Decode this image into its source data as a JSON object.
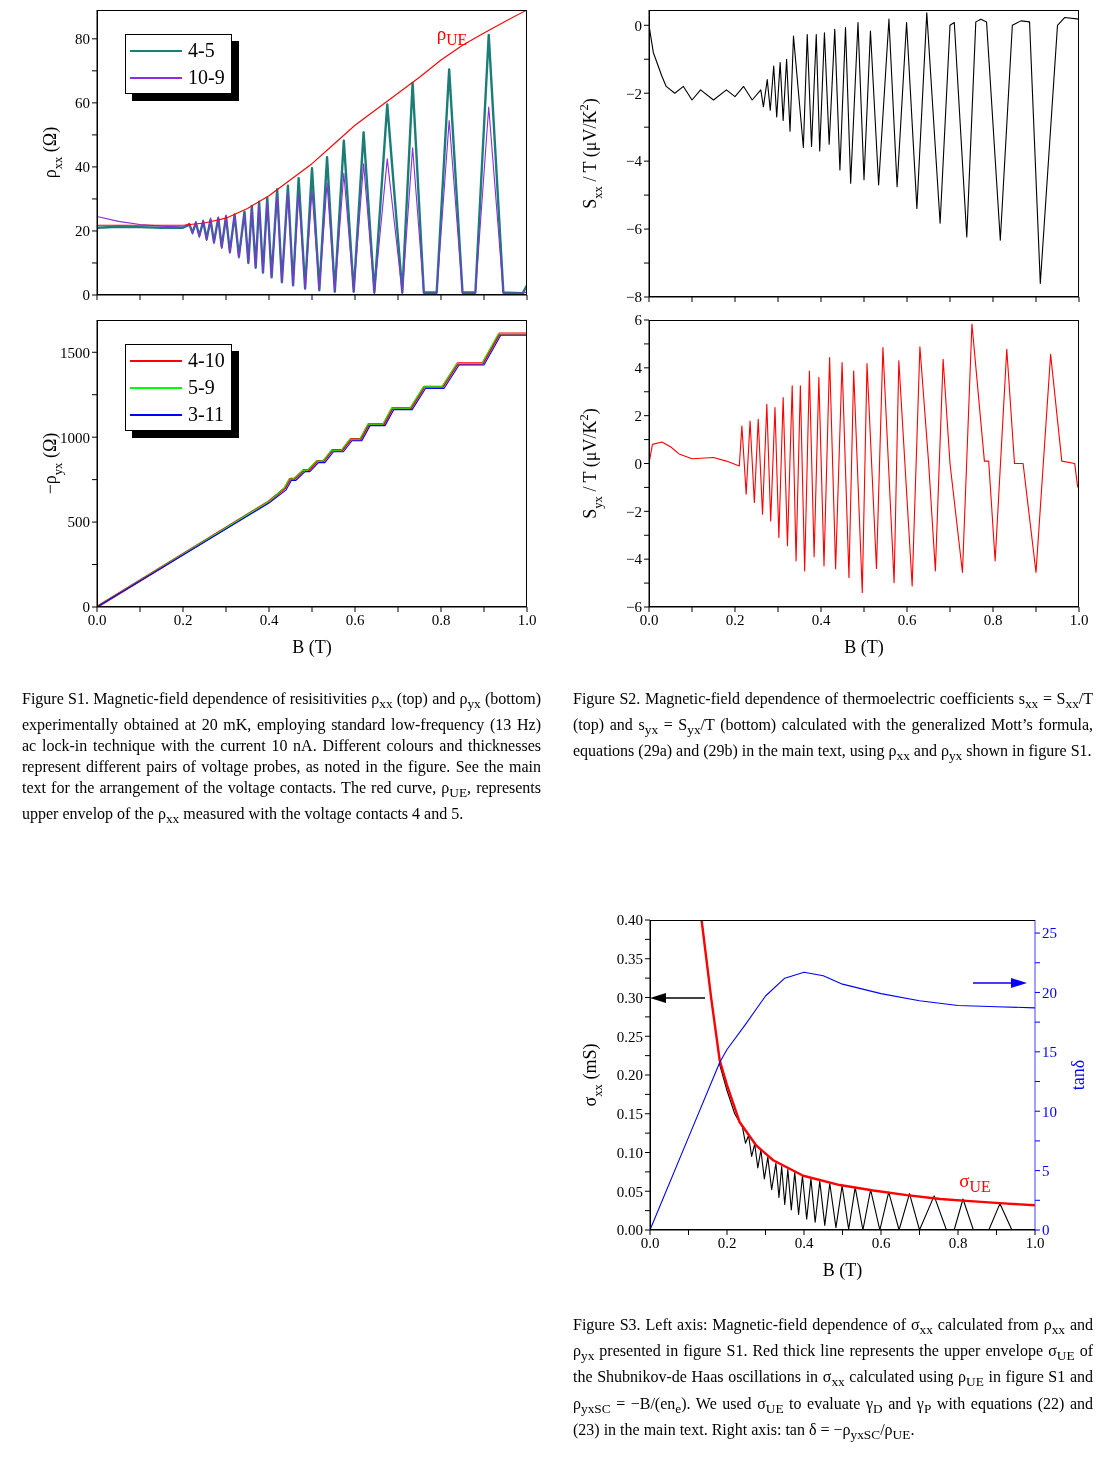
{
  "chart_data": [
    {
      "type": "line",
      "ylabel": "ρ$_{xx}$ (Ω)",
      "xlim": [
        0,
        1
      ],
      "xticks": [
        0,
        0.1,
        0.2,
        0.3,
        0.4,
        0.5,
        0.6,
        0.7,
        0.8,
        0.9,
        1
      ],
      "ylim": [
        0,
        89
      ],
      "yticks": [
        0,
        {
          "value": 10,
          "label": null
        },
        20,
        {
          "value": 30,
          "label": null
        },
        40,
        {
          "value": 50,
          "label": null
        },
        60,
        {
          "value": 70,
          "label": null
        },
        80
      ],
      "tick_labels": "y",
      "legend": "top left",
      "annotations": [
        "ρ$_{UE}$"
      ],
      "series": [
        {
          "name": "4-5",
          "color": "#1a7d78",
          "x": [
            0,
            0.05,
            0.1,
            0.15,
            0.2,
            0.215,
            0.222,
            0.23,
            0.238,
            0.247,
            0.255,
            0.264,
            0.272,
            0.282,
            0.29,
            0.3,
            0.309,
            0.32,
            0.33,
            0.343,
            0.352,
            0.36,
            0.369,
            0.377,
            0.386,
            0.396,
            0.406,
            0.419,
            0.43,
            0.444,
            0.456,
            0.469,
            0.484,
            0.5,
            0.517,
            0.535,
            0.553,
            0.574,
            0.597,
            0.62,
            0.645,
            0.675,
            0.71,
            0.734,
            0.76,
            0.79,
            0.819,
            0.85,
            0.88,
            0.911,
            0.945,
            0.99,
            1.0
          ],
          "values": [
            21,
            21.3,
            21.2,
            21,
            21,
            22,
            19.5,
            22.5,
            18.5,
            23,
            17.5,
            23.5,
            16.5,
            24,
            15,
            24.5,
            13.5,
            25,
            12,
            26,
            10,
            27.8,
            8.5,
            29.1,
            7,
            30.4,
            5.5,
            33,
            4,
            34.1,
            3,
            36.5,
            2,
            39.6,
            1.5,
            43,
            1,
            48.2,
            1,
            50.8,
            0.8,
            59.5,
            0.8,
            66.2,
            0.8,
            0.8,
            70.4,
            0.8,
            0.8,
            81.2,
            0.8,
            0.6,
            3
          ]
        },
        {
          "name": "10-9",
          "color": "#8b2be2",
          "x": [
            0,
            0.05,
            0.1,
            0.15,
            0.2,
            0.215,
            0.222,
            0.23,
            0.238,
            0.247,
            0.255,
            0.264,
            0.272,
            0.282,
            0.29,
            0.3,
            0.309,
            0.32,
            0.33,
            0.343,
            0.352,
            0.36,
            0.369,
            0.377,
            0.386,
            0.396,
            0.406,
            0.419,
            0.43,
            0.444,
            0.456,
            0.469,
            0.484,
            0.5,
            0.517,
            0.535,
            0.553,
            0.574,
            0.597,
            0.62,
            0.645,
            0.675,
            0.71,
            0.734,
            0.76,
            0.79,
            0.819,
            0.85,
            0.88,
            0.911,
            0.945,
            0.99,
            1.0
          ],
          "values": [
            24.5,
            23,
            22,
            21.5,
            21.2,
            22.4,
            19,
            23,
            18,
            23.4,
            17,
            24,
            16,
            24.4,
            14.5,
            25,
            13,
            25.4,
            11.5,
            25.5,
            10,
            27,
            8.5,
            28,
            7,
            29,
            5.5,
            31,
            4,
            32,
            3,
            31.4,
            2,
            32.5,
            1.5,
            35,
            1,
            38,
            1,
            41,
            0.5,
            42.5,
            0.5,
            46,
            0.5,
            0.5,
            54.5,
            0.5,
            0.5,
            58.7,
            0.5,
            0.5,
            1
          ]
        },
        {
          "color": "#ff0000",
          "x": [
            0,
            0.1,
            0.2,
            0.25,
            0.3,
            0.35,
            0.4,
            0.45,
            0.5,
            0.55,
            0.6,
            0.65,
            0.7,
            0.75,
            0.8,
            0.85,
            0.9,
            0.95,
            1.0
          ],
          "values": [
            21.8,
            21.8,
            21.8,
            22.5,
            24,
            27,
            31,
            36,
            41,
            47,
            53,
            58,
            63,
            68,
            73.4,
            78,
            81.8,
            85.5,
            89
          ]
        }
      ]
    },
    {
      "type": "line",
      "xlabel": "B (T)",
      "ylabel": "−ρ$_{yx}$ (Ω)",
      "xlim": [
        0,
        1
      ],
      "xticks": [
        {
          "value": 0,
          "label": "0.0"
        },
        {
          "value": 0.1,
          "label": null
        },
        0.2,
        {
          "value": 0.3,
          "label": null
        },
        0.4,
        {
          "value": 0.5,
          "label": null
        },
        0.6,
        {
          "value": 0.7,
          "label": null
        },
        0.8,
        {
          "value": 0.9,
          "label": null
        },
        {
          "value": 1,
          "label": "1.0"
        }
      ],
      "ylim": [
        0,
        1690
      ],
      "yticks": [
        0,
        {
          "value": 250,
          "label": null
        },
        500,
        {
          "value": 750,
          "label": null
        },
        1000,
        {
          "value": 1250,
          "label": null
        },
        1500
      ],
      "legend": "top left",
      "annotations": [
        "Figure S1. Magnetic-field dependence of resisitivities ρ$_{xx}$ (top) and ρ$_{yx}$ (bottom) experimentally obtained at 20 mK, employing standard low-frequency (13 Hz) ac lock-in technique with the current 10 nA. Different colours and thicknesses represent different pairs of voltage probes, as noted in the figure. See the main text for the arrangement of the voltage contacts. The red curve, ρ$_{UE}$, represents upper envelop of the ρ$_{xx}$ measured with the voltage contacts 4 and 5."
      ],
      "series": [
        {
          "name": "4-10",
          "color": "#ff0000",
          "x": [
            0,
            0.4,
            0.437,
            0.449,
            0.459,
            0.481,
            0.492,
            0.512,
            0.527,
            0.547,
            0.57,
            0.59,
            0.613,
            0.632,
            0.667,
            0.687,
            0.73,
            0.761,
            0.804,
            0.839,
            0.897,
            0.936,
            1.0
          ],
          "values": [
            0,
            621,
            700,
            754,
            754,
            806,
            806,
            859,
            859,
            923,
            923,
            988,
            988,
            1077,
            1077,
            1171,
            1171,
            1296,
            1296,
            1434,
            1434,
            1610,
            1610
          ]
        },
        {
          "name": "5-9",
          "color": "#00ff00",
          "x": [
            0,
            0.4,
            0.435,
            0.447,
            0.457,
            0.479,
            0.49,
            0.51,
            0.525,
            0.545,
            0.568,
            0.588,
            0.611,
            0.63,
            0.665,
            0.685,
            0.728,
            0.759,
            0.802,
            0.837,
            0.895,
            0.934,
            1.0
          ],
          "values": [
            0,
            621,
            700,
            754,
            754,
            806,
            806,
            859,
            859,
            923,
            923,
            988,
            988,
            1077,
            1077,
            1171,
            1171,
            1296,
            1296,
            1434,
            1434,
            1610,
            1610
          ]
        },
        {
          "name": "3-11",
          "color": "#0000ff",
          "x": [
            0,
            0.4,
            0.44,
            0.452,
            0.462,
            0.484,
            0.495,
            0.515,
            0.53,
            0.55,
            0.573,
            0.593,
            0.616,
            0.635,
            0.67,
            0.69,
            0.733,
            0.764,
            0.807,
            0.842,
            0.9,
            0.939,
            1.0
          ],
          "values": [
            0,
            612,
            690,
            745,
            745,
            797,
            797,
            850,
            850,
            914,
            914,
            979,
            979,
            1068,
            1068,
            1162,
            1162,
            1287,
            1287,
            1425,
            1425,
            1600,
            1600
          ]
        }
      ]
    },
    {
      "type": "line",
      "ylabel": "S$_{xx}$ / T (μV/K$^{2}$)",
      "xlim": [
        0,
        1
      ],
      "xticks": [
        0,
        0.1,
        0.2,
        0.3,
        0.4,
        0.5,
        0.6,
        0.7,
        0.8,
        0.9,
        1
      ],
      "ylim": [
        -8,
        0.45
      ],
      "yticks": [
        {
          "value": -8,
          "label": "−8"
        },
        {
          "value": -7,
          "label": null
        },
        {
          "value": -6,
          "label": "−6"
        },
        {
          "value": -5,
          "label": null
        },
        {
          "value": -4,
          "label": "−4"
        },
        {
          "value": -3,
          "label": null
        },
        {
          "value": -2,
          "label": "−2"
        },
        {
          "value": -1,
          "label": null
        },
        0
      ],
      "tick_labels": "y",
      "series": [
        {
          "color": "#000000",
          "x": [
            0,
            0.01,
            0.03,
            0.04,
            0.06,
            0.08,
            0.1,
            0.12,
            0.15,
            0.18,
            0.2,
            0.22,
            0.24,
            0.26,
            0.266,
            0.275,
            0.282,
            0.29,
            0.297,
            0.305,
            0.312,
            0.32,
            0.328,
            0.336,
            0.359,
            0.368,
            0.378,
            0.389,
            0.397,
            0.408,
            0.419,
            0.432,
            0.444,
            0.457,
            0.469,
            0.486,
            0.5,
            0.515,
            0.534,
            0.558,
            0.577,
            0.599,
            0.623,
            0.646,
            0.677,
            0.7,
            0.71,
            0.739,
            0.76,
            0.772,
            0.785,
            0.817,
            0.845,
            0.865,
            0.885,
            0.91,
            0.95,
            0.967,
            1.0
          ],
          "values": [
            0,
            -0.8,
            -1.5,
            -1.8,
            -2.0,
            -1.8,
            -2.2,
            -1.9,
            -2.2,
            -1.9,
            -2.1,
            -1.8,
            -2.2,
            -1.9,
            -2.4,
            -1.6,
            -2.5,
            -1.2,
            -2.7,
            -1.1,
            -2.8,
            -1.0,
            -3.12,
            -0.32,
            -3.6,
            -0.27,
            -3.57,
            -0.27,
            -3.7,
            -0.22,
            -3.5,
            -0.12,
            -4.26,
            -0.07,
            -4.65,
            0.08,
            -4.55,
            -0.17,
            -4.7,
            0.18,
            -4.75,
            0.08,
            -5.39,
            0.37,
            -5.83,
            0,
            0.08,
            -6.23,
            0.1,
            0.18,
            0.1,
            -6.33,
            0,
            0.13,
            0.1,
            -7.6,
            0,
            0.23,
            0.18
          ]
        }
      ]
    },
    {
      "type": "line",
      "xlabel": "B (T)",
      "ylabel": "S$_{yx}$ / T (μV/K$^{2}$)",
      "xlim": [
        0,
        1
      ],
      "xticks": [
        {
          "value": 0,
          "label": "0.0"
        },
        {
          "value": 0.1,
          "label": null
        },
        0.2,
        {
          "value": 0.3,
          "label": null
        },
        0.4,
        {
          "value": 0.5,
          "label": null
        },
        0.6,
        {
          "value": 0.7,
          "label": null
        },
        0.8,
        {
          "value": 0.9,
          "label": null
        },
        {
          "value": 1,
          "label": "1.0"
        }
      ],
      "ylim": [
        -6,
        6
      ],
      "yticks": [
        {
          "value": -6,
          "label": "−6"
        },
        {
          "value": -5,
          "label": null
        },
        {
          "value": -4,
          "label": "−4"
        },
        {
          "value": -3,
          "label": null
        },
        {
          "value": -2,
          "label": "−2"
        },
        {
          "value": -1,
          "label": null
        },
        0,
        {
          "value": 1,
          "label": null
        },
        2,
        {
          "value": 3,
          "label": null
        },
        4,
        {
          "value": 5,
          "label": null
        },
        6
      ],
      "annotations": [
        "Figure S2. Magnetic-field dependence of thermoelectric coefficients s$_{xx}$ = S$_{xx}$/T (top) and s$_{yx}$ = S$_{yx}$/T (bottom) calculated with the generalized Mott’s formula, equations (29a) and (29b) in the main text, using ρ$_{xx}$ and ρ$_{yx}$ shown in figure S1."
      ],
      "series": [
        {
          "color": "#ff0000",
          "x": [
            0,
            0.008,
            0.03,
            0.05,
            0.07,
            0.1,
            0.15,
            0.18,
            0.21,
            0.216,
            0.226,
            0.235,
            0.245,
            0.254,
            0.264,
            0.274,
            0.283,
            0.293,
            0.302,
            0.312,
            0.322,
            0.333,
            0.342,
            0.352,
            0.362,
            0.373,
            0.384,
            0.395,
            0.407,
            0.42,
            0.434,
            0.449,
            0.465,
            0.476,
            0.496,
            0.507,
            0.529,
            0.544,
            0.57,
            0.581,
            0.612,
            0.63,
            0.65,
            0.666,
            0.684,
            0.7,
            0.729,
            0.751,
            0.78,
            0.79,
            0.805,
            0.832,
            0.85,
            0.87,
            0.9,
            0.934,
            0.96,
            0.99,
            0.997
          ],
          "values": [
            0,
            0.8,
            0.9,
            0.7,
            0.4,
            0.2,
            0.25,
            0.1,
            -0.1,
            1.57,
            -1.28,
            1.78,
            -1.63,
            1.85,
            -2.12,
            2.48,
            -2.4,
            2.34,
            -3.09,
            2.76,
            -3.44,
            3.25,
            -4.07,
            3.25,
            -4.49,
            3.87,
            -3.9,
            3.6,
            -4.28,
            4.43,
            -4.4,
            4.22,
            -4.77,
            3.87,
            -5.39,
            4.18,
            -4.39,
            4.85,
            -4.98,
            4.29,
            -5.12,
            4.88,
            0.1,
            -4.49,
            4.36,
            0,
            -4.56,
            5.83,
            0.1,
            0.1,
            -4.07,
            4.78,
            0,
            0,
            -4.56,
            4.57,
            0.1,
            0,
            -1.0
          ]
        }
      ]
    },
    {
      "type": "line",
      "xlabel": "B (T)",
      "ylabel": "σ$_{xx}$ (mS)",
      "y2label": "tanδ",
      "xlim": [
        0,
        1
      ],
      "xticks": [
        {
          "value": 0,
          "label": "0.0"
        },
        {
          "value": 0.1,
          "label": null
        },
        0.2,
        {
          "value": 0.3,
          "label": null
        },
        0.4,
        {
          "value": 0.5,
          "label": null
        },
        0.6,
        {
          "value": 0.7,
          "label": null
        },
        0.8,
        {
          "value": 0.9,
          "label": null
        },
        {
          "value": 1,
          "label": "1.0"
        }
      ],
      "ylim": [
        0,
        0.4
      ],
      "yticks": [
        {
          "value": 0,
          "label": "0.00"
        },
        {
          "value": 0.025,
          "label": null
        },
        {
          "value": 0.05,
          "label": "0.05"
        },
        {
          "value": 0.075,
          "label": null
        },
        {
          "value": 0.1,
          "label": "0.10"
        },
        {
          "value": 0.125,
          "label": null
        },
        {
          "value": 0.15,
          "label": "0.15"
        },
        {
          "value": 0.175,
          "label": null
        },
        {
          "value": 0.2,
          "label": "0.20"
        },
        {
          "value": 0.225,
          "label": null
        },
        {
          "value": 0.25,
          "label": "0.25"
        },
        {
          "value": 0.275,
          "label": null
        },
        {
          "value": 0.3,
          "label": "0.30"
        },
        {
          "value": 0.325,
          "label": null
        },
        {
          "value": 0.35,
          "label": "0.35"
        },
        {
          "value": 0.375,
          "label": null
        },
        {
          "value": 0.4,
          "label": "0.40"
        }
      ],
      "y2lim": [
        0,
        26.1
      ],
      "y2ticks": [
        0,
        {
          "value": 2.5,
          "label": null
        },
        5,
        {
          "value": 7.5,
          "label": null
        },
        10,
        {
          "value": 12.5,
          "label": null
        },
        15,
        {
          "value": 17.5,
          "label": null
        },
        20,
        {
          "value": 22.5,
          "label": null
        },
        25
      ],
      "annotations": [
        "σ$_{UE}$",
        "Figure S3. Left axis: Magnetic-field dependence of σ$_{xx}$ calculated from ρ$_{xx}$ and ρ$_{yx}$ presented in figure S1. Red thick line represents the upper envelope σ$_{UE}$ of the Shubnikov-de Haas oscillations in σ$_{xx}$ calculated using ρ$_{UE}$ in figure S1 and ρ$_{yxSC}$ = −B/(en$_{e}$). We used σ$_{UE}$ to evaluate γ$_{D}$ and γ$_{P}$ with equations (22) and (23) in the main text. Right axis: tan δ = −ρ$_{yxSC}$/ρ$_{UE}$."
      ],
      "series": [
        {
          "color": "#000000",
          "x": [
            0.18,
            0.2,
            0.22,
            0.24,
            0.248,
            0.256,
            0.264,
            0.272,
            0.28,
            0.288,
            0.297,
            0.306,
            0.316,
            0.327,
            0.335,
            0.342,
            0.35,
            0.358,
            0.367,
            0.376,
            0.386,
            0.396,
            0.407,
            0.418,
            0.429,
            0.441,
            0.454,
            0.467,
            0.483,
            0.499,
            0.516,
            0.533,
            0.553,
            0.573,
            0.597,
            0.62,
            0.647,
            0.674,
            0.7,
            0.738,
            0.77,
            0.79,
            0.813,
            0.84,
            0.88,
            0.909,
            0.94,
            1.0
          ],
          "values": [
            0.215,
            0.18,
            0.15,
            0.133,
            0.112,
            0.122,
            0.095,
            0.111,
            0.08,
            0.103,
            0.066,
            0.094,
            0.052,
            0.086,
            0.042,
            0.082,
            0.033,
            0.078,
            0.026,
            0.074,
            0.02,
            0.07,
            0.014,
            0.066,
            0.01,
            0.063,
            0.006,
            0.06,
            0.003,
            0.057,
            0.001,
            0.055,
            0,
            0.052,
            0,
            0.049,
            0,
            0.047,
            0,
            0.044,
            0,
            0,
            0.04,
            0,
            0,
            0.034,
            0,
            0
          ]
        },
        {
          "color": "#ff0000",
          "x": [
            0.134,
            0.159,
            0.181,
            0.2,
            0.233,
            0.276,
            0.32,
            0.398,
            0.493,
            0.58,
            0.667,
            0.754,
            0.841,
            0.928,
            1.0
          ],
          "values": [
            0.4,
            0.299,
            0.219,
            0.187,
            0.139,
            0.109,
            0.09,
            0.07,
            0.058,
            0.051,
            0.045,
            0.04,
            0.037,
            0.034,
            0.032
          ]
        },
        {
          "color": "#0000ff",
          "axis": "y2",
          "x": [
            0,
            0.1,
            0.181,
            0.2,
            0.25,
            0.3,
            0.35,
            0.4,
            0.45,
            0.5,
            0.6,
            0.7,
            0.8,
            0.9,
            1.0
          ],
          "values": [
            0,
            7.8,
            14.1,
            15.2,
            17.4,
            19.7,
            21.2,
            21.7,
            21.4,
            20.7,
            19.9,
            19.3,
            18.9,
            18.8,
            18.7
          ]
        }
      ]
    }
  ]
}
